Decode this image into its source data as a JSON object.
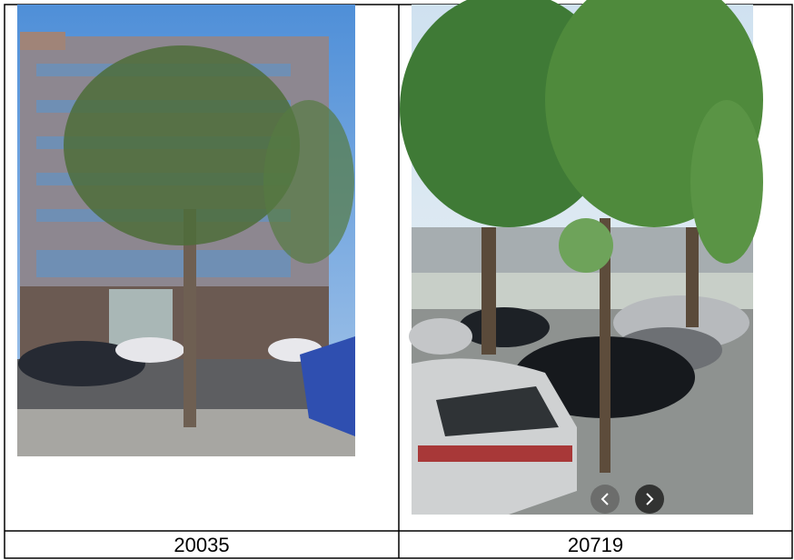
{
  "table": {
    "captions": [
      "20035",
      "20719"
    ]
  }
}
